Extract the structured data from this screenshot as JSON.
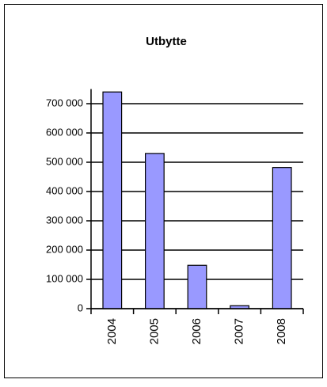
{
  "chart_data": {
    "type": "bar",
    "title": "Utbytte",
    "categories": [
      "2004",
      "2005",
      "2006",
      "2007",
      "2008"
    ],
    "values": [
      740000,
      530000,
      148000,
      10000,
      482000
    ],
    "color": "#9999ff",
    "ylim": [
      0,
      750000
    ],
    "yticks": [
      0,
      {
        "value": 100000,
        "label": "100 000"
      },
      {
        "value": 200000,
        "label": "200 000"
      },
      {
        "value": 300000,
        "label": "300 000"
      },
      {
        "value": 400000,
        "label": "400 000"
      },
      {
        "value": 500000,
        "label": "500 000"
      },
      {
        "value": 600000,
        "label": "600 000"
      },
      {
        "value": 700000,
        "label": "700 000"
      }
    ],
    "grid": true
  }
}
